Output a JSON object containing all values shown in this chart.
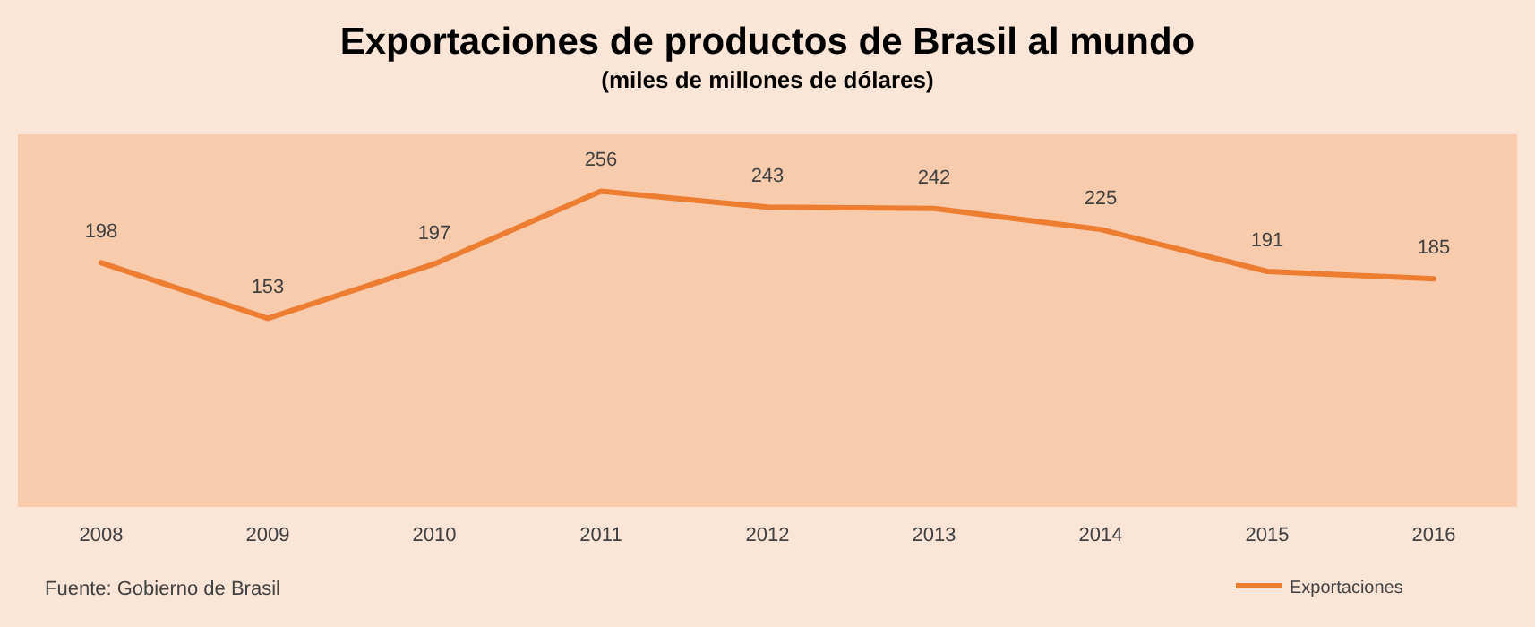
{
  "chart_data": {
    "type": "line",
    "title": "Exportaciones de productos de Brasil al mundo",
    "subtitle": "(miles de millones de dólares)",
    "categories": [
      "2008",
      "2009",
      "2010",
      "2011",
      "2012",
      "2013",
      "2014",
      "2015",
      "2016"
    ],
    "series": [
      {
        "name": "Exportaciones",
        "color": "#ed7d31",
        "values": [
          198,
          153,
          197,
          256,
          243,
          242,
          225,
          191,
          185
        ]
      }
    ],
    "data_labels": true,
    "legend": "bottom right",
    "marker": "none",
    "line_style": "solid",
    "annotations": [
      "Fuente: Gobierno de Brasil"
    ]
  }
}
